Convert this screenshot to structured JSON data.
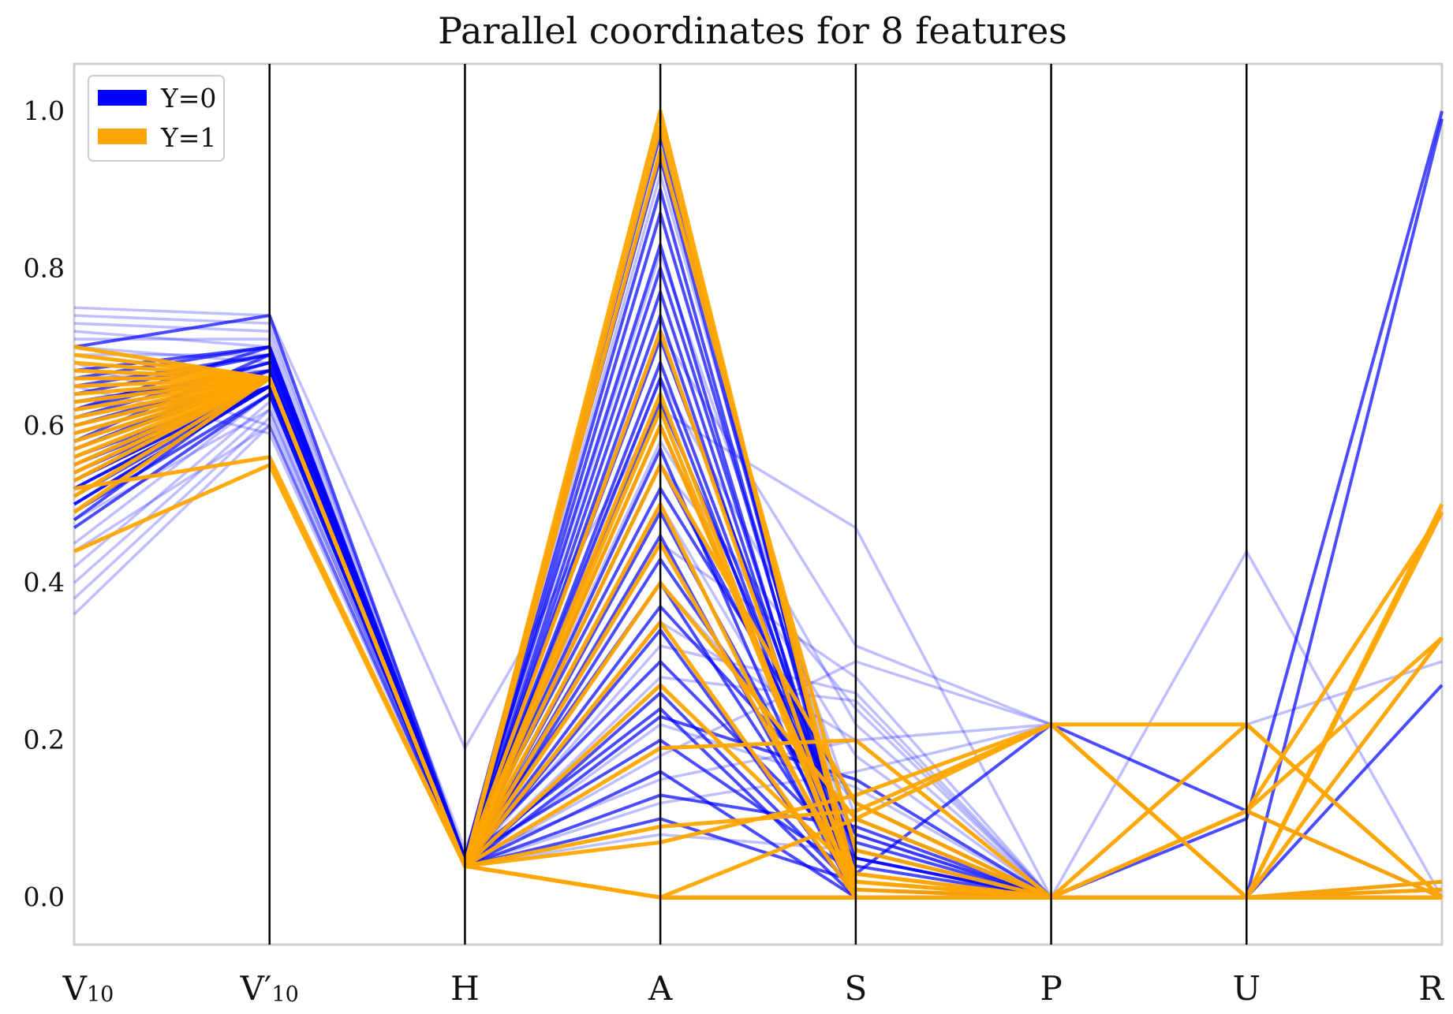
{
  "chart_data": {
    "type": "parallel-coordinates",
    "title": "Parallel coordinates for 8 features",
    "axes": [
      {
        "main": "V",
        "sub": "10"
      },
      {
        "main": "V′",
        "sub": "10"
      },
      {
        "main": "H",
        "sub": ""
      },
      {
        "main": "A",
        "sub": ""
      },
      {
        "main": "S",
        "sub": ""
      },
      {
        "main": "P",
        "sub": ""
      },
      {
        "main": "U",
        "sub": ""
      },
      {
        "main": "R",
        "sub": ""
      }
    ],
    "yticks": [
      "0.0",
      "0.2",
      "0.4",
      "0.6",
      "0.8",
      "1.0"
    ],
    "ylim": [
      -0.06,
      1.06
    ],
    "grid": "vertical axes only",
    "legend_position": "top-left",
    "colors": {
      "Y=0": "#0000ff",
      "Y=1": "#ffa500"
    },
    "series": [
      {
        "name": "Y=0",
        "lines": [
          [
            0.7,
            0.74,
            0.05,
            0.97,
            0.0,
            0.0,
            0.1,
            1.0
          ],
          [
            0.66,
            0.7,
            0.05,
            0.94,
            0.02,
            0.0,
            0.0,
            0.99
          ],
          [
            0.62,
            0.7,
            0.04,
            0.9,
            0.01,
            0.0,
            0.0,
            0.27
          ],
          [
            0.58,
            0.69,
            0.04,
            0.87,
            0.03,
            0.22,
            0.11,
            0.0
          ],
          [
            0.55,
            0.66,
            0.05,
            0.83,
            0.0,
            0.0,
            0.0,
            0.0
          ],
          [
            0.52,
            0.65,
            0.04,
            0.8,
            0.02,
            0.0,
            0.0,
            0.01
          ],
          [
            0.5,
            0.65,
            0.04,
            0.77,
            0.01,
            0.0,
            0.0,
            0.0
          ],
          [
            0.48,
            0.66,
            0.04,
            0.74,
            0.0,
            0.0,
            0.0,
            0.0
          ],
          [
            0.61,
            0.68,
            0.05,
            0.71,
            0.05,
            0.0,
            0.0,
            0.0
          ],
          [
            0.57,
            0.67,
            0.04,
            0.68,
            0.02,
            0.0,
            0.0,
            0.02
          ],
          [
            0.53,
            0.65,
            0.04,
            0.66,
            0.01,
            0.0,
            0.0,
            0.0
          ],
          [
            0.64,
            0.69,
            0.05,
            0.63,
            0.06,
            0.0,
            0.0,
            0.0
          ],
          [
            0.6,
            0.66,
            0.04,
            0.6,
            0.04,
            0.0,
            0.0,
            0.0
          ],
          [
            0.56,
            0.65,
            0.04,
            0.57,
            0.0,
            0.0,
            0.0,
            0.0
          ],
          [
            0.51,
            0.65,
            0.04,
            0.55,
            0.08,
            0.0,
            0.0,
            0.0
          ],
          [
            0.63,
            0.67,
            0.05,
            0.52,
            0.12,
            0.0,
            0.0,
            0.0
          ],
          [
            0.59,
            0.66,
            0.04,
            0.49,
            0.03,
            0.0,
            0.0,
            0.0
          ],
          [
            0.54,
            0.65,
            0.04,
            0.46,
            0.0,
            0.0,
            0.0,
            0.0
          ],
          [
            0.49,
            0.64,
            0.04,
            0.43,
            0.07,
            0.0,
            0.0,
            0.0
          ],
          [
            0.67,
            0.7,
            0.05,
            0.4,
            0.02,
            0.0,
            0.0,
            0.0
          ],
          [
            0.58,
            0.66,
            0.04,
            0.37,
            0.1,
            0.0,
            0.0,
            0.0
          ],
          [
            0.52,
            0.65,
            0.04,
            0.34,
            0.0,
            0.0,
            0.0,
            0.0
          ],
          [
            0.62,
            0.68,
            0.05,
            0.3,
            0.05,
            0.0,
            0.0,
            0.0
          ],
          [
            0.55,
            0.65,
            0.04,
            0.26,
            0.01,
            0.0,
            0.0,
            0.0
          ],
          [
            0.5,
            0.65,
            0.04,
            0.23,
            0.15,
            0.0,
            0.0,
            0.0
          ],
          [
            0.6,
            0.67,
            0.05,
            0.2,
            0.03,
            0.0,
            0.0,
            0.0
          ],
          [
            0.47,
            0.64,
            0.04,
            0.16,
            0.0,
            0.0,
            0.0,
            0.0
          ],
          [
            0.57,
            0.66,
            0.04,
            0.13,
            0.09,
            0.0,
            0.0,
            0.0
          ],
          [
            0.53,
            0.65,
            0.04,
            0.1,
            0.02,
            0.0,
            0.0,
            0.0
          ],
          [
            0.65,
            0.69,
            0.05,
            0.24,
            0.0,
            0.0,
            0.0,
            0.0
          ]
        ],
        "faint_lines": [
          [
            0.75,
            0.74,
            0.19,
            0.62,
            0.47,
            0.0,
            0.0,
            0.0
          ],
          [
            0.73,
            0.72,
            0.06,
            0.72,
            0.32,
            0.22,
            0.0,
            0.0
          ],
          [
            0.72,
            0.7,
            0.04,
            0.55,
            0.24,
            0.0,
            0.44,
            0.0
          ],
          [
            0.7,
            0.68,
            0.04,
            0.45,
            0.28,
            0.0,
            0.0,
            0.33
          ],
          [
            0.68,
            0.6,
            0.04,
            0.35,
            0.2,
            0.22,
            0.0,
            0.0
          ],
          [
            0.65,
            0.59,
            0.04,
            0.58,
            0.18,
            0.0,
            0.0,
            0.0
          ],
          [
            0.45,
            0.64,
            0.04,
            0.28,
            0.25,
            0.0,
            0.0,
            0.0
          ],
          [
            0.42,
            0.63,
            0.04,
            0.22,
            0.14,
            0.0,
            0.22,
            0.3
          ],
          [
            0.4,
            0.62,
            0.04,
            0.18,
            0.3,
            0.22,
            0.0,
            0.0
          ],
          [
            0.38,
            0.61,
            0.04,
            0.4,
            0.12,
            0.0,
            0.0,
            0.0
          ],
          [
            0.36,
            0.6,
            0.04,
            0.5,
            0.08,
            0.0,
            0.0,
            0.0
          ],
          [
            0.74,
            0.73,
            0.05,
            0.82,
            0.1,
            0.0,
            0.0,
            0.0
          ],
          [
            0.71,
            0.71,
            0.05,
            0.66,
            0.22,
            0.0,
            0.0,
            0.0
          ],
          [
            0.69,
            0.69,
            0.04,
            0.12,
            0.16,
            0.22,
            0.0,
            0.0
          ],
          [
            0.63,
            0.66,
            0.04,
            0.08,
            0.06,
            0.0,
            0.0,
            0.0
          ],
          [
            0.44,
            0.6,
            0.04,
            0.32,
            0.26,
            0.0,
            0.0,
            0.0
          ],
          [
            0.48,
            0.62,
            0.04,
            0.92,
            0.05,
            0.0,
            0.0,
            0.0
          ],
          [
            0.66,
            0.67,
            0.05,
            0.15,
            0.2,
            0.0,
            0.0,
            0.0
          ]
        ]
      },
      {
        "name": "Y=1",
        "lines": [
          [
            0.7,
            0.66,
            0.04,
            1.0,
            0.0,
            0.0,
            0.0,
            0.0
          ],
          [
            0.68,
            0.66,
            0.04,
            0.98,
            0.02,
            0.0,
            0.0,
            0.0
          ],
          [
            0.66,
            0.66,
            0.04,
            0.72,
            0.01,
            0.0,
            0.0,
            0.01
          ],
          [
            0.64,
            0.66,
            0.04,
            0.64,
            0.0,
            0.0,
            0.0,
            0.0
          ],
          [
            0.62,
            0.66,
            0.04,
            0.6,
            0.03,
            0.0,
            0.0,
            0.0
          ],
          [
            0.6,
            0.66,
            0.04,
            0.55,
            0.12,
            0.0,
            0.0,
            0.0
          ],
          [
            0.58,
            0.66,
            0.04,
            0.5,
            0.0,
            0.0,
            0.0,
            0.0
          ],
          [
            0.56,
            0.66,
            0.04,
            0.45,
            0.02,
            0.0,
            0.0,
            0.0
          ],
          [
            0.55,
            0.66,
            0.04,
            0.4,
            0.1,
            0.0,
            0.0,
            0.0
          ],
          [
            0.53,
            0.66,
            0.04,
            0.35,
            0.0,
            0.0,
            0.0,
            0.0
          ],
          [
            0.51,
            0.66,
            0.04,
            0.27,
            0.03,
            0.0,
            0.0,
            0.0
          ],
          [
            0.67,
            0.66,
            0.04,
            0.19,
            0.2,
            0.0,
            0.0,
            0.0
          ],
          [
            0.63,
            0.66,
            0.04,
            0.09,
            0.11,
            0.22,
            0.22,
            0.0
          ],
          [
            0.61,
            0.66,
            0.04,
            0.07,
            0.13,
            0.22,
            0.0,
            0.49
          ],
          [
            0.59,
            0.66,
            0.04,
            0.0,
            0.1,
            0.22,
            0.0,
            0.5
          ],
          [
            0.57,
            0.66,
            0.04,
            0.0,
            0.0,
            0.0,
            0.22,
            0.0
          ],
          [
            0.52,
            0.56,
            0.04,
            0.0,
            0.0,
            0.0,
            0.11,
            0.49
          ],
          [
            0.44,
            0.55,
            0.04,
            0.0,
            0.0,
            0.0,
            0.11,
            0.33
          ],
          [
            0.54,
            0.66,
            0.04,
            0.0,
            0.0,
            0.0,
            0.0,
            0.33
          ],
          [
            0.69,
            0.66,
            0.04,
            0.0,
            0.0,
            0.0,
            0.0,
            0.0
          ],
          [
            0.65,
            0.66,
            0.04,
            0.95,
            0.06,
            0.0,
            0.11,
            0.0
          ],
          [
            0.49,
            0.66,
            0.04,
            0.62,
            0.0,
            0.0,
            0.0,
            0.02
          ]
        ]
      }
    ]
  }
}
